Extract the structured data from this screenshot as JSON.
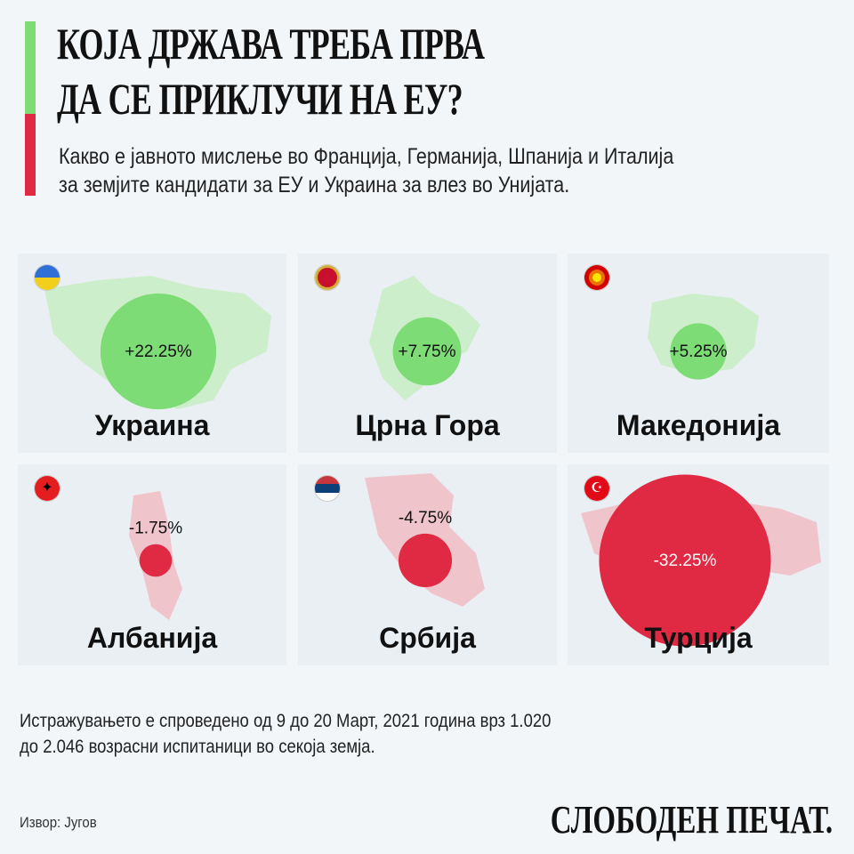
{
  "header": {
    "title_line1": "КОЈА ДРЖАВА ТРЕБА ПРВА",
    "title_line2": "ДА СЕ ПРИКЛУЧИ НА ЕУ?",
    "subtitle_line1": "Какво е јавното мислење во Франција, Германија, Шпанија и Италија",
    "subtitle_line2": "за земјите кандидати за ЕУ и Украина за влез во Унијата."
  },
  "colors": {
    "positive": "#7ddc75",
    "positive_map": "#cdeecb",
    "negative": "#e02a44",
    "negative_map": "#f0c4cb",
    "background": "#f2f6f9"
  },
  "chart_data": {
    "type": "bubble",
    "categories": [
      "Украина",
      "Црна Гора",
      "Македонија",
      "Албанија",
      "Србија",
      "Турција"
    ],
    "values": [
      22.25,
      7.75,
      5.25,
      -1.75,
      -4.75,
      -32.25
    ],
    "labels": [
      "+22.25%",
      "+7.75%",
      "+5.25%",
      "-1.75%",
      "-4.75%",
      "-32.25%"
    ]
  },
  "flags": [
    "ukraine-flag",
    "montenegro-flag",
    "macedonia-flag",
    "albania-flag",
    "serbia-flag",
    "turkey-flag"
  ],
  "footer": {
    "note_line1": "Истражувањето е спроведено од 9 до 20 Март, 2021 година врз 1.020",
    "note_line2": "до 2.046 возрасни испитаници во секоја земја.",
    "source": "Извор: Југов",
    "logo": "СЛОБОДЕН ПЕЧАТ."
  }
}
